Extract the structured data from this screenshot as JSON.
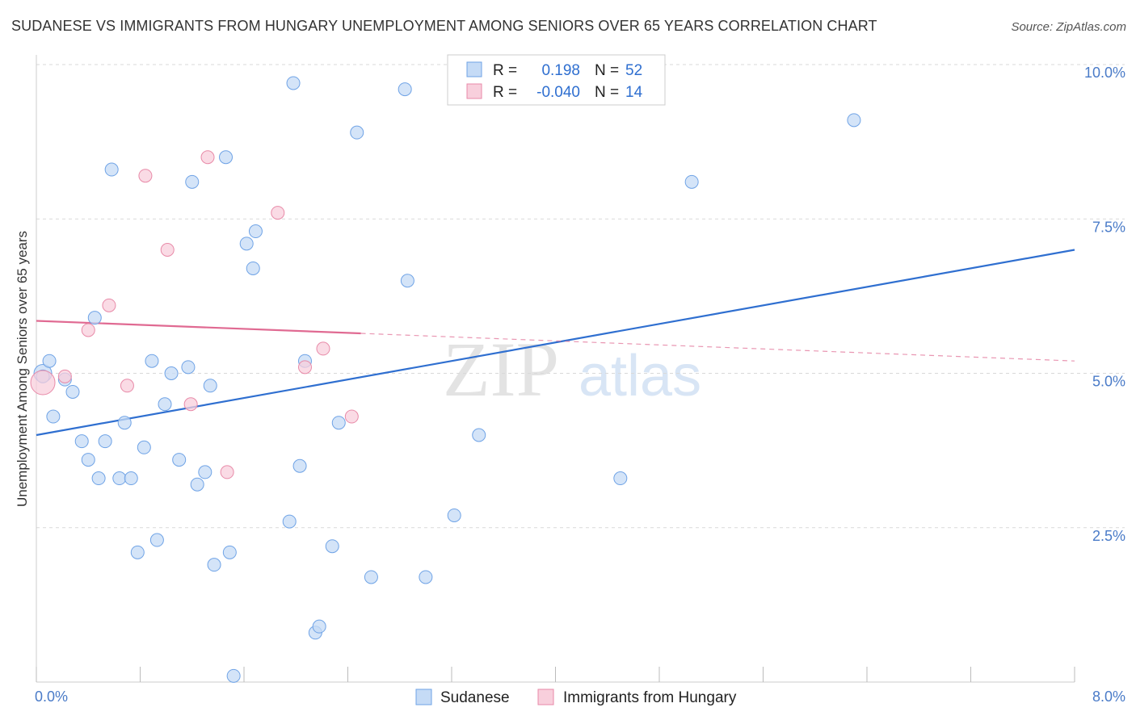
{
  "title": "SUDANESE VS IMMIGRANTS FROM HUNGARY UNEMPLOYMENT AMONG SENIORS OVER 65 YEARS CORRELATION CHART",
  "source": "Source: ZipAtlas.com",
  "watermark": {
    "zip": "ZIP",
    "atlas": "atlas"
  },
  "colors": {
    "blue": "#6fa3e6",
    "blue_fill": "#c5dbf6",
    "blue_line": "#2f6fd0",
    "pink": "#e88aa8",
    "pink_fill": "#f8cfdc",
    "pink_line": "#e06a92",
    "grid": "#d9d9d9",
    "tick": "#4a7bc8"
  },
  "legend": {
    "rows": [
      {
        "r_label": "R =",
        "r_value": "0.198",
        "n_label": "N =",
        "n_value": "52"
      },
      {
        "r_label": "R =",
        "r_value": "-0.040",
        "n_label": "N =",
        "n_value": "14"
      }
    ]
  },
  "chart_data": {
    "type": "scatter",
    "title": "SUDANESE VS IMMIGRANTS FROM HUNGARY UNEMPLOYMENT AMONG SENIORS OVER 65 YEARS CORRELATION CHART",
    "xlabel": "",
    "ylabel": "Unemployment Among Seniors over 65 years",
    "xlim": [
      0,
      8
    ],
    "ylim": [
      0,
      10
    ],
    "x_tick_labels": [
      "0.0%",
      "8.0%"
    ],
    "y_ticks": [
      2.5,
      5.0,
      7.5,
      10.0
    ],
    "y_tick_labels": [
      "2.5%",
      "5.0%",
      "7.5%",
      "10.0%"
    ],
    "grid": true,
    "series": [
      {
        "name": "Sudanese",
        "trend": {
          "x": [
            0,
            8
          ],
          "y": [
            4.0,
            7.0
          ]
        },
        "points": [
          [
            0.05,
            5.0
          ],
          [
            0.1,
            5.2
          ],
          [
            0.22,
            4.9
          ],
          [
            0.13,
            4.3
          ],
          [
            0.28,
            4.7
          ],
          [
            0.35,
            3.9
          ],
          [
            0.4,
            3.6
          ],
          [
            0.45,
            5.9
          ],
          [
            0.48,
            3.3
          ],
          [
            0.53,
            3.9
          ],
          [
            0.58,
            8.3
          ],
          [
            0.64,
            3.3
          ],
          [
            0.68,
            4.2
          ],
          [
            0.73,
            3.3
          ],
          [
            0.78,
            2.1
          ],
          [
            0.83,
            3.8
          ],
          [
            0.89,
            5.2
          ],
          [
            0.93,
            2.3
          ],
          [
            0.99,
            4.5
          ],
          [
            1.04,
            5.0
          ],
          [
            1.1,
            3.6
          ],
          [
            1.17,
            5.1
          ],
          [
            1.2,
            8.1
          ],
          [
            1.24,
            3.2
          ],
          [
            1.3,
            3.4
          ],
          [
            1.34,
            4.8
          ],
          [
            1.37,
            1.9
          ],
          [
            1.46,
            8.5
          ],
          [
            1.49,
            2.1
          ],
          [
            1.52,
            0.1
          ],
          [
            1.62,
            7.1
          ],
          [
            1.67,
            6.7
          ],
          [
            1.69,
            7.3
          ],
          [
            1.95,
            2.6
          ],
          [
            1.98,
            9.7
          ],
          [
            2.03,
            3.5
          ],
          [
            2.07,
            5.2
          ],
          [
            2.15,
            0.8
          ],
          [
            2.18,
            0.9
          ],
          [
            2.28,
            2.2
          ],
          [
            2.33,
            4.2
          ],
          [
            2.47,
            8.9
          ],
          [
            2.58,
            1.7
          ],
          [
            2.84,
            9.6
          ],
          [
            2.86,
            6.5
          ],
          [
            3.0,
            1.7
          ],
          [
            3.22,
            2.7
          ],
          [
            3.41,
            4.0
          ],
          [
            4.5,
            3.3
          ],
          [
            5.05,
            8.1
          ],
          [
            6.3,
            9.1
          ],
          [
            0.05,
            4.95
          ]
        ]
      },
      {
        "name": "Immigrants from Hungary",
        "trend": {
          "x": [
            0,
            8
          ],
          "y": [
            5.85,
            5.2
          ],
          "solid_until": 2.5
        },
        "points": [
          [
            0.05,
            4.85
          ],
          [
            0.22,
            4.95
          ],
          [
            0.4,
            5.7
          ],
          [
            0.56,
            6.1
          ],
          [
            0.7,
            4.8
          ],
          [
            0.84,
            8.2
          ],
          [
            1.01,
            7.0
          ],
          [
            1.19,
            4.5
          ],
          [
            1.32,
            8.5
          ],
          [
            1.47,
            3.4
          ],
          [
            1.86,
            7.6
          ],
          [
            2.07,
            5.1
          ],
          [
            2.21,
            5.4
          ],
          [
            2.43,
            4.3
          ]
        ]
      }
    ]
  }
}
